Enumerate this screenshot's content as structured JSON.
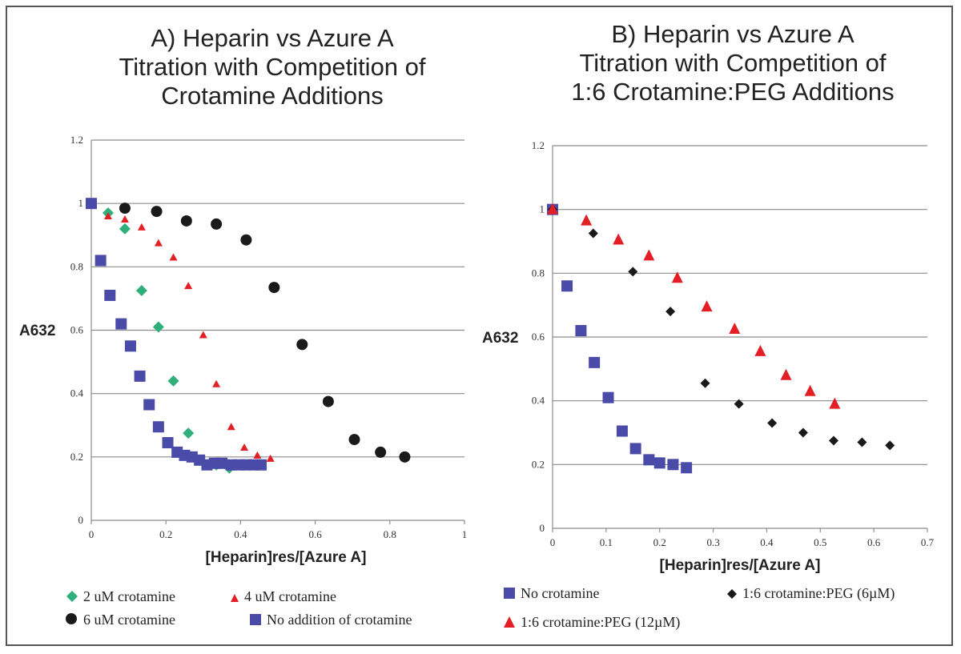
{
  "chart_data": [
    {
      "type": "scatter",
      "title_lines": [
        "A) Heparin vs Azure A",
        "Titration with Competition of",
        "Crotamine Additions"
      ],
      "xlabel": "[Heparin]res/[Azure A]",
      "ylabel": "A632",
      "xlim": [
        0,
        1
      ],
      "ylim": [
        0,
        1.2
      ],
      "xticks": [
        "0",
        "0.2",
        "0.4",
        "0.6",
        "0.8",
        "1"
      ],
      "xtick_values": [
        0,
        0.2,
        0.4,
        0.6,
        0.8,
        1
      ],
      "yticks": [
        "0",
        "0.2",
        "0.4",
        "0.6",
        "0.8",
        "1",
        "1.2"
      ],
      "ytick_values": [
        0,
        0.2,
        0.4,
        0.6,
        0.8,
        1,
        1.2
      ],
      "grid": true,
      "series": [
        {
          "name": "2 uM crotamine",
          "marker": "diamond",
          "color": "#2fb07a",
          "points": [
            [
              0.045,
              0.97
            ],
            [
              0.09,
              0.92
            ],
            [
              0.135,
              0.725
            ],
            [
              0.18,
              0.61
            ],
            [
              0.22,
              0.44
            ],
            [
              0.26,
              0.275
            ],
            [
              0.335,
              0.175
            ],
            [
              0.37,
              0.165
            ]
          ]
        },
        {
          "name": "4 uM crotamine",
          "marker": "triangle-small",
          "color": "#e31e24",
          "points": [
            [
              0.045,
              0.96
            ],
            [
              0.09,
              0.95
            ],
            [
              0.135,
              0.925
            ],
            [
              0.18,
              0.875
            ],
            [
              0.22,
              0.83
            ],
            [
              0.26,
              0.74
            ],
            [
              0.3,
              0.585
            ],
            [
              0.335,
              0.43
            ],
            [
              0.375,
              0.295
            ],
            [
              0.41,
              0.23
            ],
            [
              0.445,
              0.205
            ],
            [
              0.48,
              0.195
            ]
          ]
        },
        {
          "name": "6 uM crotamine",
          "marker": "circle",
          "color": "#1a1a1a",
          "points": [
            [
              0.09,
              0.985
            ],
            [
              0.175,
              0.975
            ],
            [
              0.255,
              0.945
            ],
            [
              0.335,
              0.935
            ],
            [
              0.415,
              0.885
            ],
            [
              0.49,
              0.735
            ],
            [
              0.565,
              0.555
            ],
            [
              0.635,
              0.375
            ],
            [
              0.705,
              0.255
            ],
            [
              0.775,
              0.215
            ],
            [
              0.84,
              0.2
            ]
          ]
        },
        {
          "name": "No addition of crotamine",
          "marker": "square",
          "color": "#4a4aa8",
          "points": [
            [
              0,
              1.0
            ],
            [
              0.025,
              0.82
            ],
            [
              0.05,
              0.71
            ],
            [
              0.08,
              0.62
            ],
            [
              0.105,
              0.55
            ],
            [
              0.13,
              0.455
            ],
            [
              0.155,
              0.365
            ],
            [
              0.18,
              0.295
            ],
            [
              0.205,
              0.245
            ],
            [
              0.23,
              0.215
            ],
            [
              0.25,
              0.205
            ],
            [
              0.27,
              0.2
            ],
            [
              0.29,
              0.19
            ],
            [
              0.31,
              0.175
            ],
            [
              0.33,
              0.18
            ],
            [
              0.35,
              0.18
            ],
            [
              0.375,
              0.175
            ],
            [
              0.395,
              0.175
            ],
            [
              0.415,
              0.175
            ],
            [
              0.435,
              0.175
            ],
            [
              0.455,
              0.175
            ]
          ]
        }
      ],
      "legend": [
        "2 uM crotamine",
        "4 uM crotamine",
        "6 uM crotamine",
        "No addition of crotamine"
      ]
    },
    {
      "type": "scatter",
      "title_lines": [
        "B) Heparin vs Azure A",
        "Titration with Competition of",
        "1:6 Crotamine:PEG Additions"
      ],
      "xlabel": "[Heparin]res/[Azure A]",
      "ylabel": "A632",
      "xlim": [
        0,
        0.7
      ],
      "ylim": [
        0,
        1.2
      ],
      "xticks": [
        "0",
        "0.1",
        "0.2",
        "0.3",
        "0.4",
        "0.5",
        "0.6",
        "0.7"
      ],
      "xtick_values": [
        0,
        0.1,
        0.2,
        0.3,
        0.4,
        0.5,
        0.6,
        0.7
      ],
      "yticks": [
        "0",
        "0.2",
        "0.4",
        "0.6",
        "0.8",
        "1",
        "1.2"
      ],
      "ytick_values": [
        0,
        0.2,
        0.4,
        0.6,
        0.8,
        1,
        1.2
      ],
      "grid": true,
      "series": [
        {
          "name": "No crotamine",
          "marker": "square",
          "color": "#4a4aa8",
          "points": [
            [
              0,
              1.0
            ],
            [
              0.027,
              0.76
            ],
            [
              0.053,
              0.62
            ],
            [
              0.078,
              0.52
            ],
            [
              0.104,
              0.41
            ],
            [
              0.13,
              0.305
            ],
            [
              0.155,
              0.25
            ],
            [
              0.18,
              0.215
            ],
            [
              0.2,
              0.205
            ],
            [
              0.225,
              0.2
            ],
            [
              0.25,
              0.19
            ]
          ]
        },
        {
          "name": "1:6 crotamine:PEG (6µM)",
          "marker": "diamond-small",
          "color": "#1a1a1a",
          "points": [
            [
              0,
              1.0
            ],
            [
              0.076,
              0.925
            ],
            [
              0.15,
              0.805
            ],
            [
              0.22,
              0.68
            ],
            [
              0.285,
              0.455
            ],
            [
              0.348,
              0.39
            ],
            [
              0.41,
              0.33
            ],
            [
              0.468,
              0.3
            ],
            [
              0.525,
              0.275
            ],
            [
              0.578,
              0.27
            ],
            [
              0.63,
              0.26
            ]
          ]
        },
        {
          "name": "1:6 crotamine:PEG (12µM)",
          "marker": "triangle",
          "color": "#e31e24",
          "points": [
            [
              0,
              1.0
            ],
            [
              0.063,
              0.965
            ],
            [
              0.123,
              0.905
            ],
            [
              0.18,
              0.855
            ],
            [
              0.233,
              0.785
            ],
            [
              0.288,
              0.695
            ],
            [
              0.34,
              0.625
            ],
            [
              0.388,
              0.555
            ],
            [
              0.436,
              0.48
            ],
            [
              0.481,
              0.43
            ],
            [
              0.527,
              0.39
            ]
          ]
        }
      ],
      "legend": [
        "No crotamine",
        "1:6 crotamine:PEG (6µM)",
        "1:6 crotamine:PEG (12µM)"
      ]
    }
  ]
}
